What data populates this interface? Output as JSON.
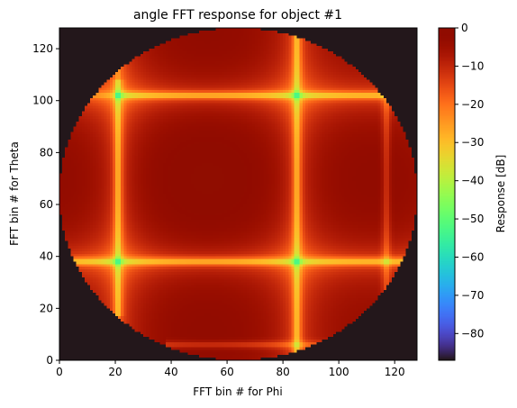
{
  "chart_data": {
    "type": "heatmap",
    "title": "angle FFT response for object #1",
    "xlabel": "FFT bin # for Phi",
    "ylabel": "FFT bin # for Theta",
    "xlim": [
      0,
      128
    ],
    "ylim": [
      0,
      128
    ],
    "x_ticks": [
      0,
      20,
      40,
      60,
      80,
      100,
      120
    ],
    "y_ticks": [
      0,
      20,
      40,
      60,
      80,
      100,
      120
    ],
    "grid": false,
    "colorbar": {
      "label": "Response [dB]",
      "range": [
        -87,
        0
      ],
      "ticks": [
        0,
        -10,
        -20,
        -30,
        -40,
        -50,
        -60,
        -70,
        -80
      ],
      "tick_labels": [
        "0",
        "−10",
        "−20",
        "−30",
        "−40",
        "−50",
        "−60",
        "−70",
        "−80"
      ],
      "colormap": "turbo"
    },
    "grid_size": [
      128,
      128
    ],
    "aperture": {
      "shape": "circle",
      "center": [
        64,
        64
      ],
      "radius": 64,
      "outside_value_db": -87
    },
    "peak": {
      "x": 53,
      "y": 70,
      "value_db": 0
    },
    "null_columns_phi": [
      21,
      85,
      117
    ],
    "null_rows_theta": [
      6,
      38,
      102
    ],
    "null_lines": [
      {
        "orientation": "vertical",
        "phi": 21,
        "theta_range": [
          17,
          108
        ]
      },
      {
        "orientation": "vertical",
        "phi": 85,
        "theta_range": [
          0,
          128
        ]
      },
      {
        "orientation": "vertical",
        "phi": 117,
        "theta_range": [
          22,
          108
        ]
      },
      {
        "orientation": "horizontal",
        "theta": 38,
        "phi_range": [
          5,
          124
        ]
      },
      {
        "orientation": "horizontal",
        "theta": 102,
        "phi_range": [
          20,
          116
        ]
      },
      {
        "orientation": "horizontal",
        "theta": 6,
        "phi_range": [
          38,
          112
        ]
      }
    ]
  }
}
